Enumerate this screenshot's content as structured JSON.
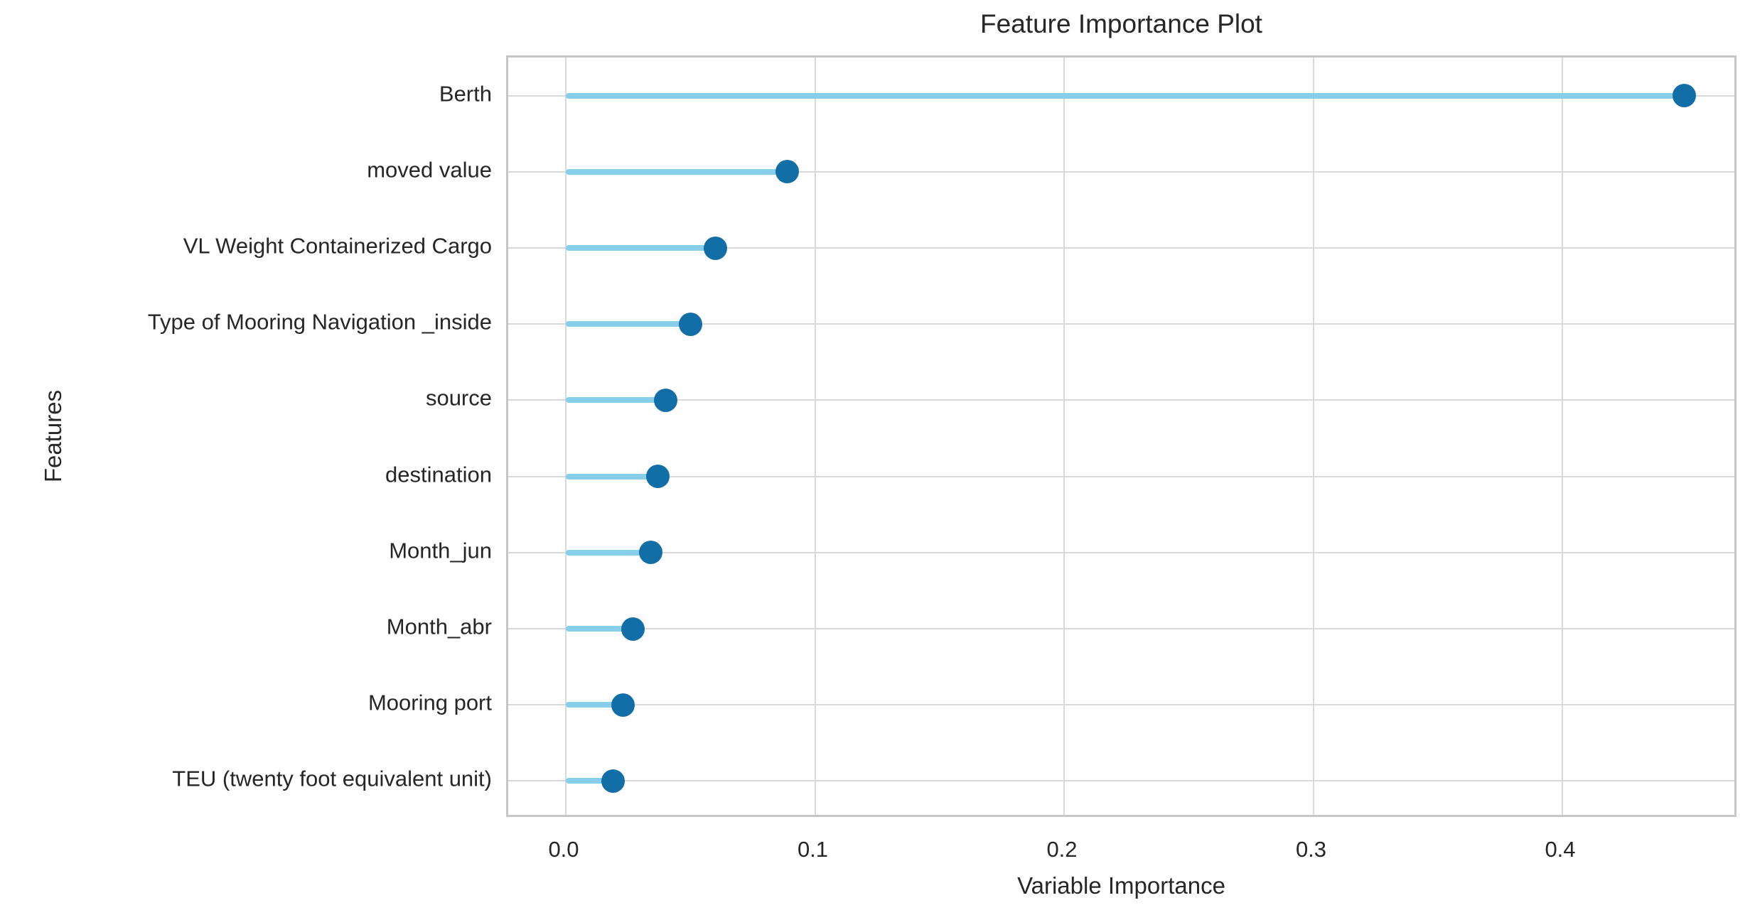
{
  "chart_data": {
    "type": "bar",
    "variant": "lollipop",
    "orientation": "horizontal",
    "title": "Feature Importance Plot",
    "xlabel": "Variable Importance",
    "ylabel": "Features",
    "categories": [
      "Berth",
      "moved value",
      "VL Weight Containerized Cargo",
      "Type of Mooring Navigation _inside",
      "source",
      "destination",
      "Month_jun",
      "Month_abr",
      "Mooring port",
      "TEU (twenty foot equivalent unit)"
    ],
    "values": [
      0.449,
      0.089,
      0.06,
      0.05,
      0.04,
      0.037,
      0.034,
      0.027,
      0.023,
      0.019
    ],
    "xlim": [
      -0.023,
      0.471
    ],
    "xticks": [
      0.0,
      0.1,
      0.2,
      0.3,
      0.4
    ],
    "xtick_labels": [
      "0.0",
      "0.1",
      "0.2",
      "0.3",
      "0.4"
    ],
    "grid": true,
    "legend_position": "none",
    "colors": {
      "stem": "#87CEEB",
      "dot": "#126EA6",
      "grid": "#D9D9D9",
      "border": "#C6C6C6",
      "text": "#262626",
      "background": "#FFFFFF"
    }
  }
}
